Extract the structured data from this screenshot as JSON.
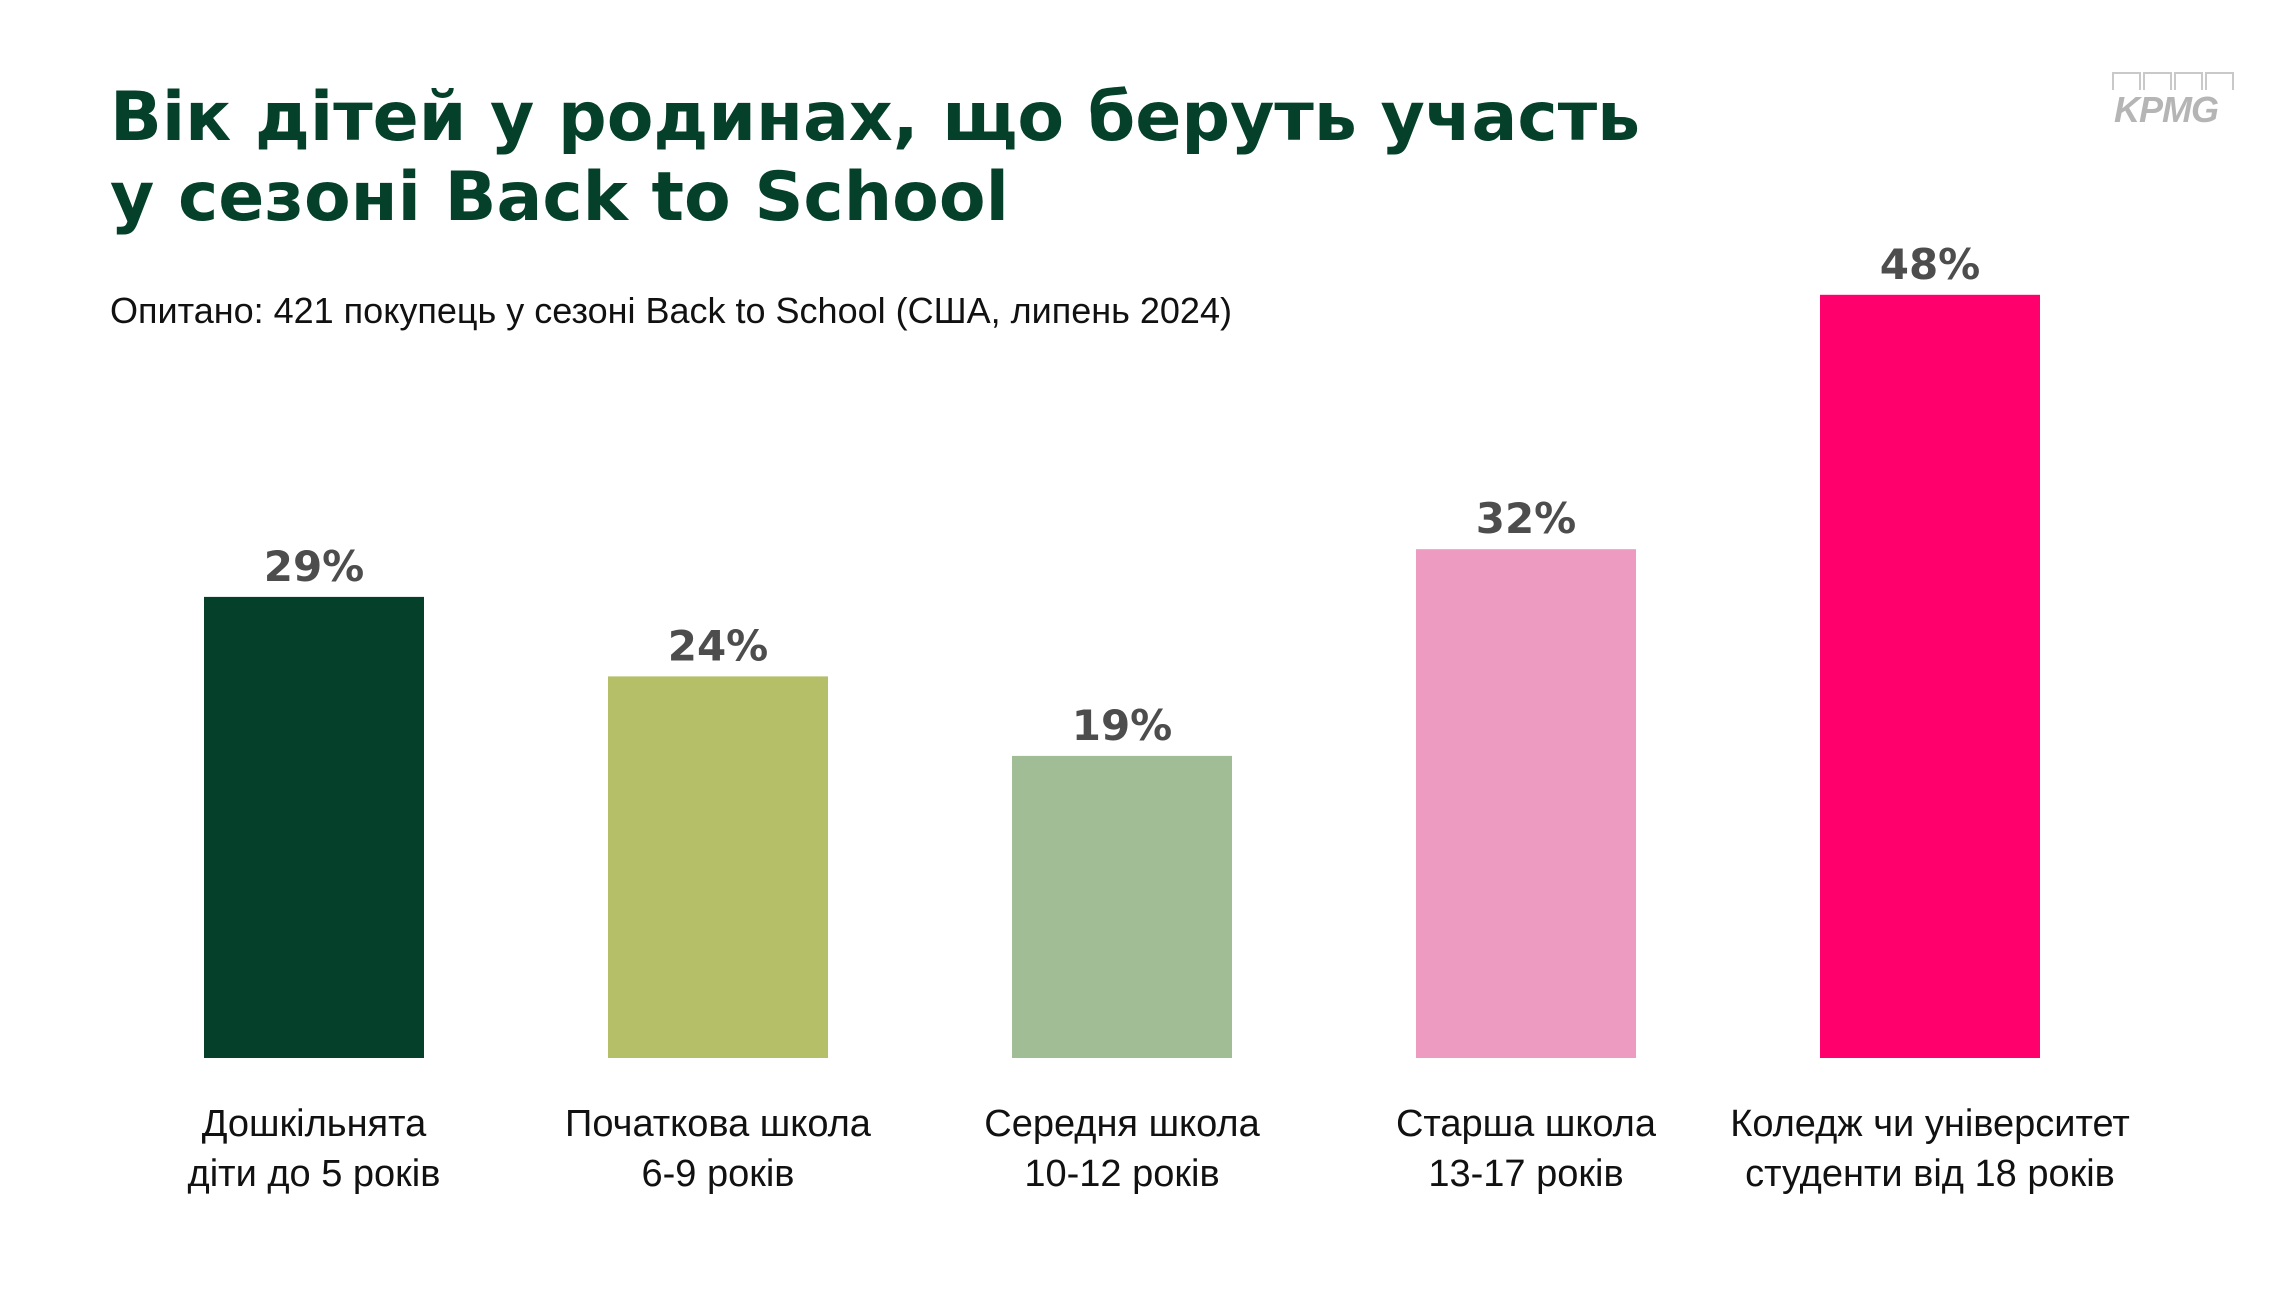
{
  "header": {
    "title_line1": "Вік дітей у родинах, що беруть участь",
    "title_line2": "у сезоні Back to School",
    "subtitle": "Опитано: 421 покупець у сезоні Back to School (США, липень 2024)"
  },
  "logo": {
    "text": "KPMG"
  },
  "chart_data": {
    "type": "bar",
    "title": "Вік дітей у родинах, що беруть участь у сезоні Back to School",
    "subtitle": "Опитано: 421 покупець у сезоні Back to School (США, липень 2024)",
    "ylim": [
      0,
      100
    ],
    "grid": false,
    "categories": [
      [
        "Дошкільнята",
        "діти до 5 років"
      ],
      [
        "Початкова школа",
        "6-9 років"
      ],
      [
        "Середня школа",
        "10-12 років"
      ],
      [
        "Старша школа",
        "13-17 років"
      ],
      [
        "Коледж чи університет",
        "студенти від 18 років"
      ]
    ],
    "values": [
      29,
      24,
      19,
      32,
      48
    ],
    "value_labels": [
      "29%",
      "24%",
      "19%",
      "32%",
      "48%"
    ],
    "colors": [
      "#05412a",
      "#b4bf68",
      "#a0bd95",
      "#ed9bc0",
      "#ff006d"
    ]
  }
}
